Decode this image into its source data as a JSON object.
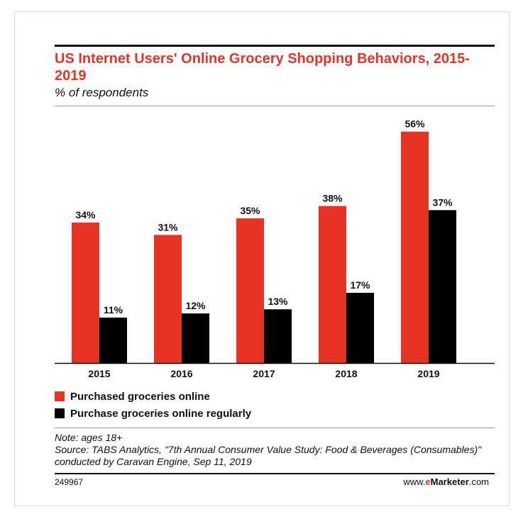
{
  "chart_data": {
    "type": "bar",
    "title": "US Internet Users' Online Grocery Shopping Behaviors, 2015-2019",
    "subtitle": "% of respondents",
    "categories": [
      "2015",
      "2016",
      "2017",
      "2018",
      "2019"
    ],
    "series": [
      {
        "name": "Purchased groceries online",
        "values": [
          34,
          31,
          35,
          38,
          56
        ],
        "labels": [
          "34%",
          "31%",
          "35%",
          "38%",
          "56%"
        ],
        "color": "#e63323"
      },
      {
        "name": "Purchase groceries online regularly",
        "values": [
          11,
          12,
          13,
          17,
          37
        ],
        "labels": [
          "11%",
          "12%",
          "13%",
          "17%",
          "37%"
        ],
        "color": "#000000"
      }
    ],
    "ylim": [
      0,
      58
    ],
    "grid": false,
    "legend": "bottom-left",
    "note": "Note: ages 18+",
    "source": "Source: TABS Analytics, \"7th Annual Consumer Value Study: Food & Beverages (Consumables)\" conducted by Caravan Engine, Sep 11, 2019",
    "chart_id": "249967",
    "brand": {
      "prefix": "www.",
      "name": "eMarketer",
      "suffix": ".com"
    }
  }
}
